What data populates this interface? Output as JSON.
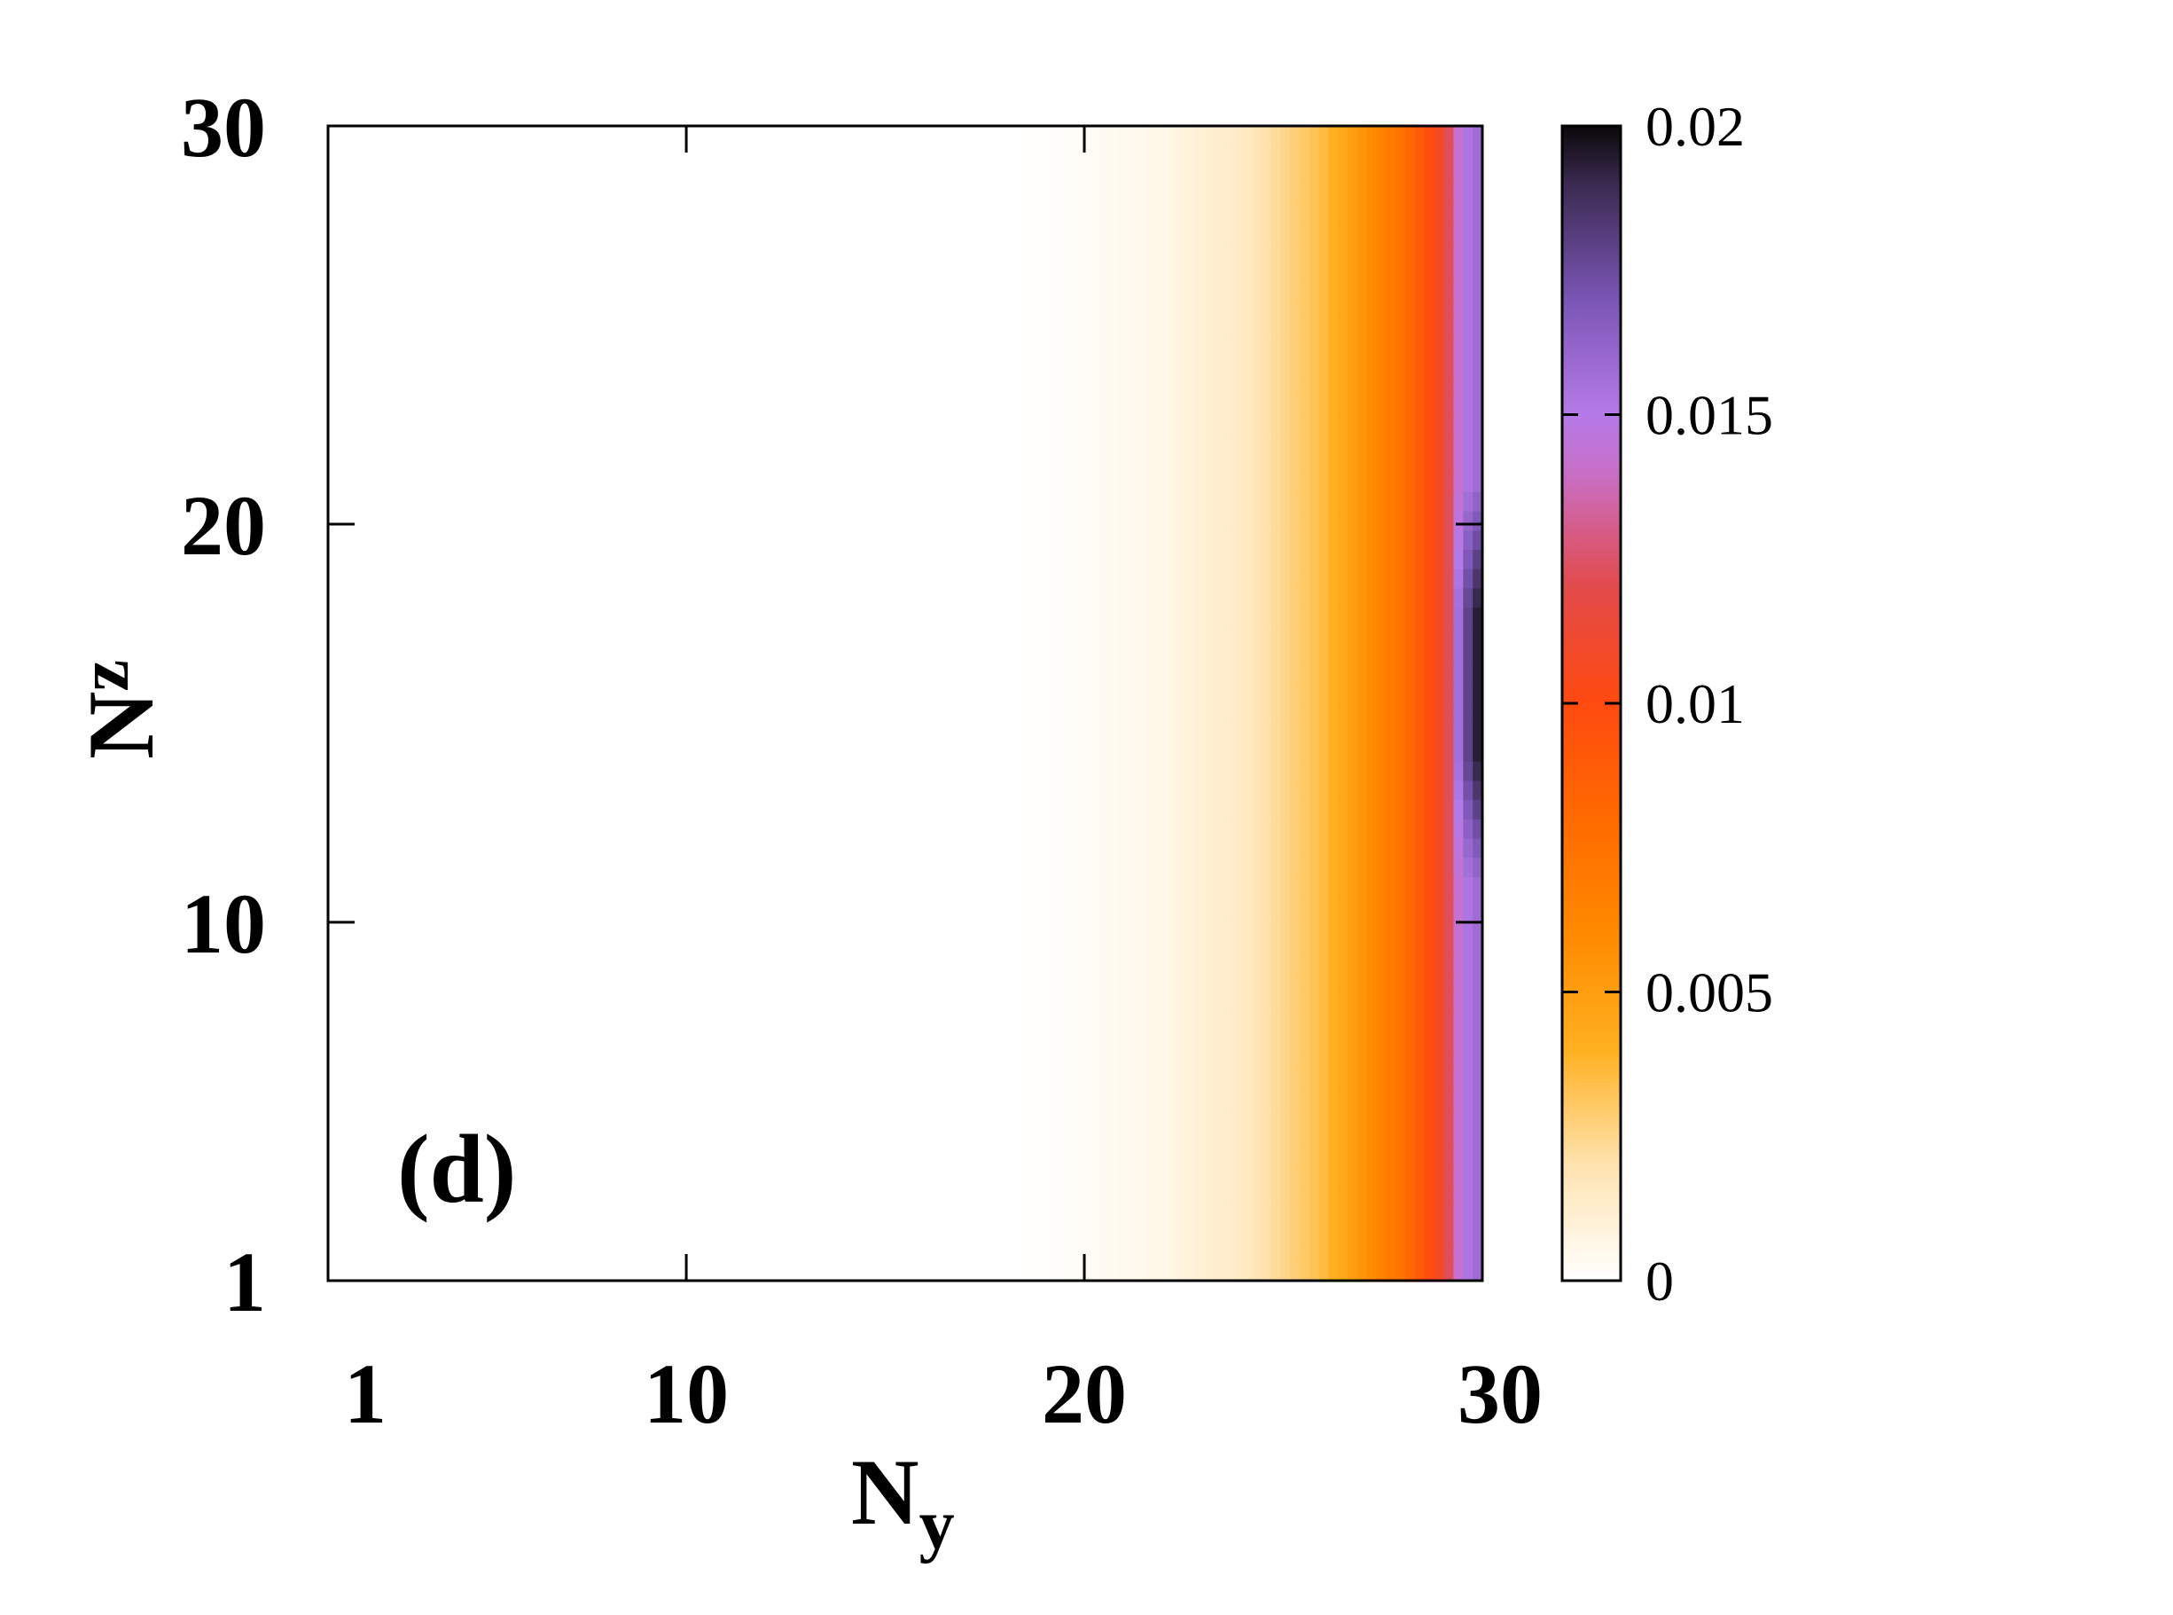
{
  "chart_data": {
    "type": "heatmap",
    "panel_label": "(d)",
    "x_axis": {
      "label_main": "N",
      "label_sub": "y",
      "ticks": [
        "1",
        "10",
        "20",
        "30"
      ],
      "tick_values": [
        1,
        10,
        20,
        30
      ],
      "range": [
        1,
        30
      ]
    },
    "y_axis": {
      "label_main": "N",
      "label_sub": "z",
      "ticks": [
        "1",
        "10",
        "20",
        "30"
      ],
      "tick_values": [
        1,
        10,
        20,
        30
      ],
      "range": [
        1,
        30
      ]
    },
    "colorbar": {
      "range": [
        0,
        0.02
      ],
      "ticks": [
        "0",
        "0.005",
        "0.01",
        "0.015",
        "0.02"
      ],
      "tick_values": [
        0,
        0.005,
        0.01,
        0.015,
        0.02
      ],
      "colormap": [
        {
          "value": 0.0,
          "color": "#ffffff"
        },
        {
          "value": 0.002,
          "color": "#ffe3b0"
        },
        {
          "value": 0.004,
          "color": "#ffb020"
        },
        {
          "value": 0.006,
          "color": "#ff8a00"
        },
        {
          "value": 0.008,
          "color": "#ff6a00"
        },
        {
          "value": 0.01,
          "color": "#ff4a10"
        },
        {
          "value": 0.012,
          "color": "#e34a4a"
        },
        {
          "value": 0.014,
          "color": "#c86fc8"
        },
        {
          "value": 0.015,
          "color": "#b57ae8"
        },
        {
          "value": 0.017,
          "color": "#7a55b5"
        },
        {
          "value": 0.019,
          "color": "#3a2a50"
        },
        {
          "value": 0.02,
          "color": "#0a0808"
        }
      ]
    },
    "data_description_rows": {
      "Nz_1_to_11_and_21_to_30": "low-to-moderate values at edge Ny=30 near 0.015",
      "Nz_12_to_20": "peak values at Ny=30 near 0.02"
    },
    "profile_along_Ny": [
      {
        "Ny": 1,
        "value": 0.0
      },
      {
        "Ny": 18,
        "value": 0.0
      },
      {
        "Ny": 20,
        "value": 0.0002
      },
      {
        "Ny": 22,
        "value": 0.0006
      },
      {
        "Ny": 24,
        "value": 0.0015
      },
      {
        "Ny": 26,
        "value": 0.0035
      },
      {
        "Ny": 27,
        "value": 0.0055
      },
      {
        "Ny": 28,
        "value": 0.0075
      },
      {
        "Ny": 29,
        "value": 0.011
      },
      {
        "Ny": 29.5,
        "value": 0.015
      },
      {
        "Ny": 30,
        "value": 0.016
      }
    ],
    "peak_rows": {
      "Nz_from": 12,
      "Nz_to": 20,
      "peak_value": 0.02
    }
  }
}
